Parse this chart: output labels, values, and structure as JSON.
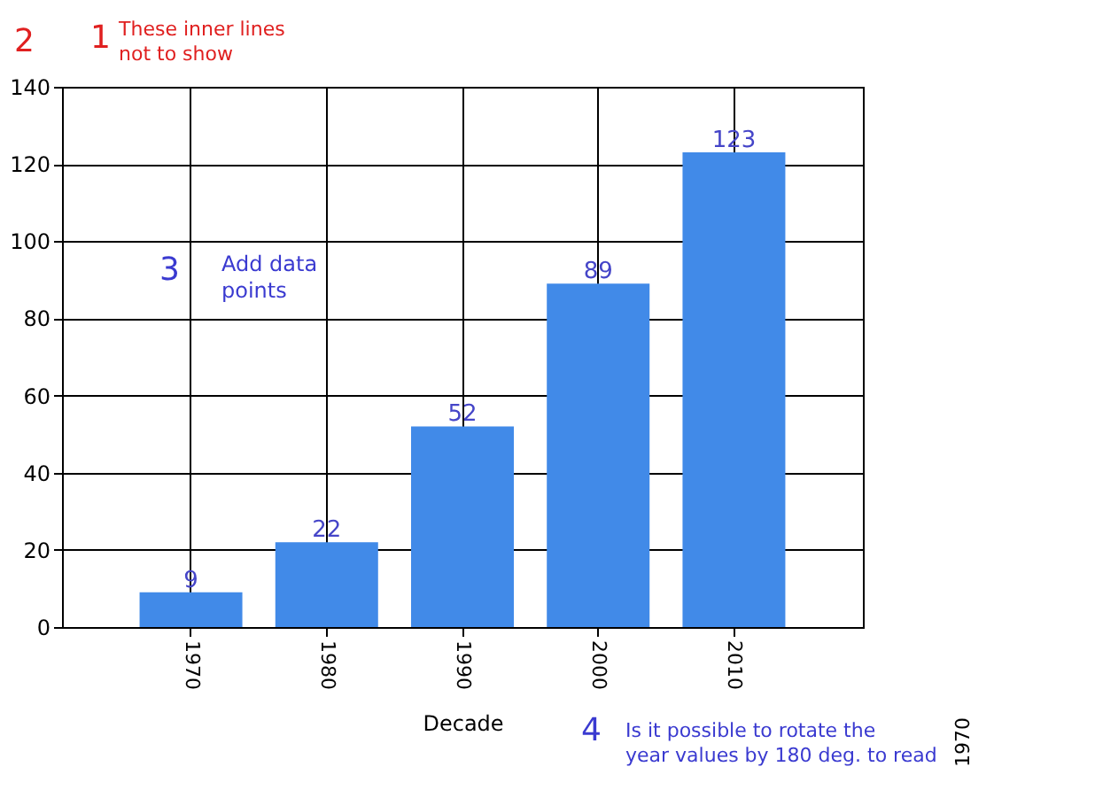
{
  "chart_data": {
    "type": "bar",
    "categories": [
      "1970",
      "1980",
      "1990",
      "2000",
      "2010"
    ],
    "values": [
      9,
      22,
      52,
      89,
      123
    ],
    "color": "#418ae8",
    "xlabel": "Decade",
    "ylim": [
      0,
      140
    ],
    "yticks": [
      0,
      20,
      40,
      60,
      80,
      100,
      120,
      140
    ],
    "grid": true,
    "data_labels": true,
    "annotations": [
      "1",
      "These inner lines\nnot to show",
      "2",
      "3",
      "Add data\npoints",
      "4",
      "Is it possible to rotate the\nyear values by 180 deg. to read",
      "1970"
    ]
  }
}
